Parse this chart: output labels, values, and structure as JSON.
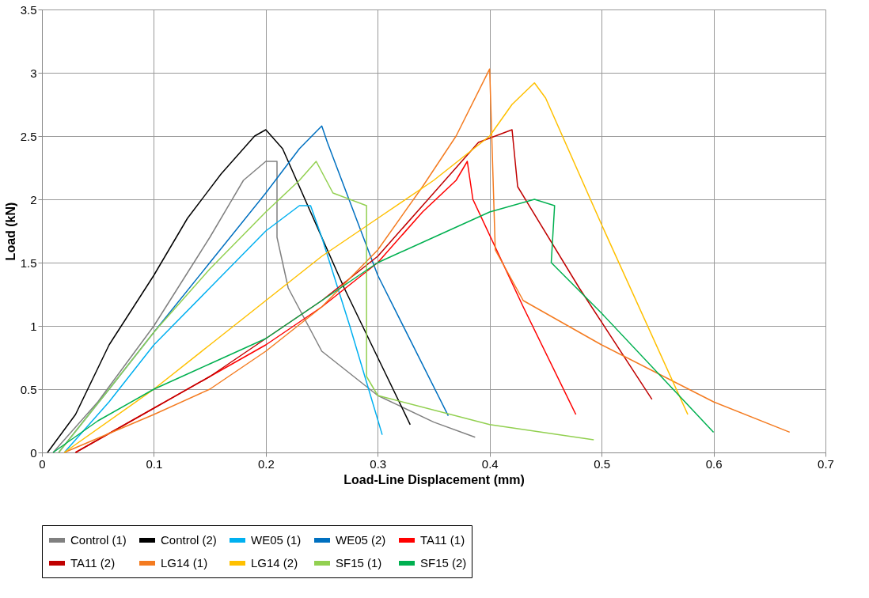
{
  "chart_data": {
    "type": "line",
    "xlabel": "Load-Line Displacement  (mm)",
    "ylabel": "Load (kN)",
    "xlim": [
      0,
      0.7
    ],
    "xticks": [
      0,
      0.1,
      0.2,
      0.3,
      0.4,
      0.5,
      0.6,
      0.7
    ],
    "ylim": [
      0,
      3.5
    ],
    "yticks": [
      0,
      0.5,
      1,
      1.5,
      2,
      2.5,
      3,
      3.5
    ],
    "grid": true,
    "legend": "bottom",
    "marker": "none",
    "line_style": "solid",
    "series": [
      {
        "name": "Control (1)",
        "color": "#808080",
        "x": [
          0.01,
          0.05,
          0.1,
          0.15,
          0.18,
          0.2,
          0.21,
          0.21,
          0.22,
          0.25,
          0.3,
          0.35,
          0.387
        ],
        "values": [
          0,
          0.4,
          1.0,
          1.7,
          2.15,
          2.3,
          2.3,
          1.7,
          1.3,
          0.8,
          0.45,
          0.24,
          0.12
        ]
      },
      {
        "name": "Control (2)",
        "color": "#000000",
        "x": [
          0.005,
          0.03,
          0.06,
          0.1,
          0.13,
          0.16,
          0.19,
          0.2,
          0.21,
          0.215,
          0.27,
          0.3,
          0.329
        ],
        "values": [
          0,
          0.3,
          0.85,
          1.4,
          1.85,
          2.2,
          2.5,
          2.55,
          2.45,
          2.4,
          1.3,
          0.75,
          0.22
        ]
      },
      {
        "name": "WE05 (1)",
        "color": "#00b0f0",
        "x": [
          0.02,
          0.06,
          0.1,
          0.15,
          0.2,
          0.23,
          0.24,
          0.25,
          0.275,
          0.304
        ],
        "values": [
          0,
          0.4,
          0.85,
          1.3,
          1.75,
          1.95,
          1.95,
          1.7,
          1.0,
          0.14
        ]
      },
      {
        "name": "WE05 (2)",
        "color": "#0070c0",
        "x": [
          0.015,
          0.06,
          0.1,
          0.15,
          0.2,
          0.23,
          0.25,
          0.255,
          0.3,
          0.363
        ],
        "values": [
          0,
          0.5,
          0.95,
          1.5,
          2.05,
          2.4,
          2.58,
          2.45,
          1.4,
          0.29
        ]
      },
      {
        "name": "TA11 (1)",
        "color": "#ff0000",
        "x": [
          0.03,
          0.1,
          0.15,
          0.2,
          0.25,
          0.3,
          0.34,
          0.37,
          0.38,
          0.385,
          0.43,
          0.477
        ],
        "values": [
          0,
          0.35,
          0.6,
          0.85,
          1.15,
          1.5,
          1.9,
          2.15,
          2.3,
          2.0,
          1.15,
          0.3
        ]
      },
      {
        "name": "TA11 (2)",
        "color": "#c00000",
        "x": [
          0.03,
          0.1,
          0.15,
          0.2,
          0.25,
          0.3,
          0.35,
          0.39,
          0.42,
          0.425,
          0.48,
          0.545
        ],
        "values": [
          0,
          0.35,
          0.6,
          0.9,
          1.2,
          1.55,
          2.05,
          2.45,
          2.55,
          2.1,
          1.3,
          0.42
        ]
      },
      {
        "name": "LG14 (1)",
        "color": "#f47b20",
        "x": [
          0.02,
          0.1,
          0.15,
          0.2,
          0.25,
          0.3,
          0.34,
          0.37,
          0.4,
          0.405,
          0.43,
          0.5,
          0.6,
          0.668
        ],
        "values": [
          0,
          0.3,
          0.5,
          0.8,
          1.15,
          1.6,
          2.1,
          2.5,
          3.03,
          1.6,
          1.2,
          0.85,
          0.4,
          0.16
        ]
      },
      {
        "name": "LG14 (2)",
        "color": "#ffc000",
        "x": [
          0.02,
          0.1,
          0.15,
          0.2,
          0.25,
          0.3,
          0.35,
          0.4,
          0.42,
          0.44,
          0.45,
          0.5,
          0.577
        ],
        "values": [
          0,
          0.5,
          0.85,
          1.2,
          1.55,
          1.85,
          2.15,
          2.5,
          2.75,
          2.92,
          2.8,
          1.8,
          0.3
        ]
      },
      {
        "name": "SF15 (1)",
        "color": "#92d050",
        "x": [
          0.015,
          0.06,
          0.1,
          0.15,
          0.2,
          0.23,
          0.245,
          0.26,
          0.29,
          0.29,
          0.3,
          0.4,
          0.493
        ],
        "values": [
          0,
          0.5,
          0.95,
          1.45,
          1.9,
          2.15,
          2.3,
          2.05,
          1.95,
          0.6,
          0.45,
          0.22,
          0.1
        ]
      },
      {
        "name": "SF15 (2)",
        "color": "#00b050",
        "x": [
          0.01,
          0.05,
          0.1,
          0.15,
          0.2,
          0.25,
          0.3,
          0.35,
          0.4,
          0.44,
          0.458,
          0.455,
          0.5,
          0.6
        ],
        "values": [
          0,
          0.25,
          0.5,
          0.7,
          0.9,
          1.2,
          1.5,
          1.7,
          1.9,
          2.0,
          1.95,
          1.5,
          1.1,
          0.16
        ]
      }
    ]
  }
}
